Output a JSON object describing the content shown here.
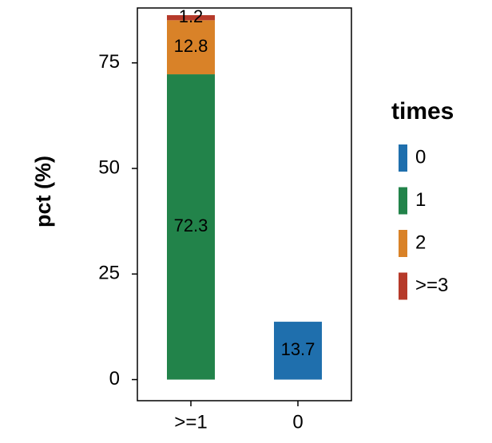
{
  "chart_data": {
    "type": "stacked-bar",
    "y_label": "pct (%)",
    "categories": [
      ">=1",
      "0"
    ],
    "legend_title": "times",
    "series": [
      {
        "name": "0",
        "color": "#1f6fad",
        "values": [
          null,
          13.7
        ]
      },
      {
        "name": "1",
        "color": "#22834a",
        "values": [
          72.3,
          null
        ]
      },
      {
        "name": "2",
        "color": "#d98228",
        "values": [
          12.8,
          null
        ]
      },
      {
        "name": ">=3",
        "color": "#b63a2a",
        "values": [
          1.2,
          null
        ]
      }
    ],
    "ylim": [
      -5,
      88
    ],
    "yticks": [
      0,
      25,
      50,
      75
    ],
    "legend": "right"
  }
}
